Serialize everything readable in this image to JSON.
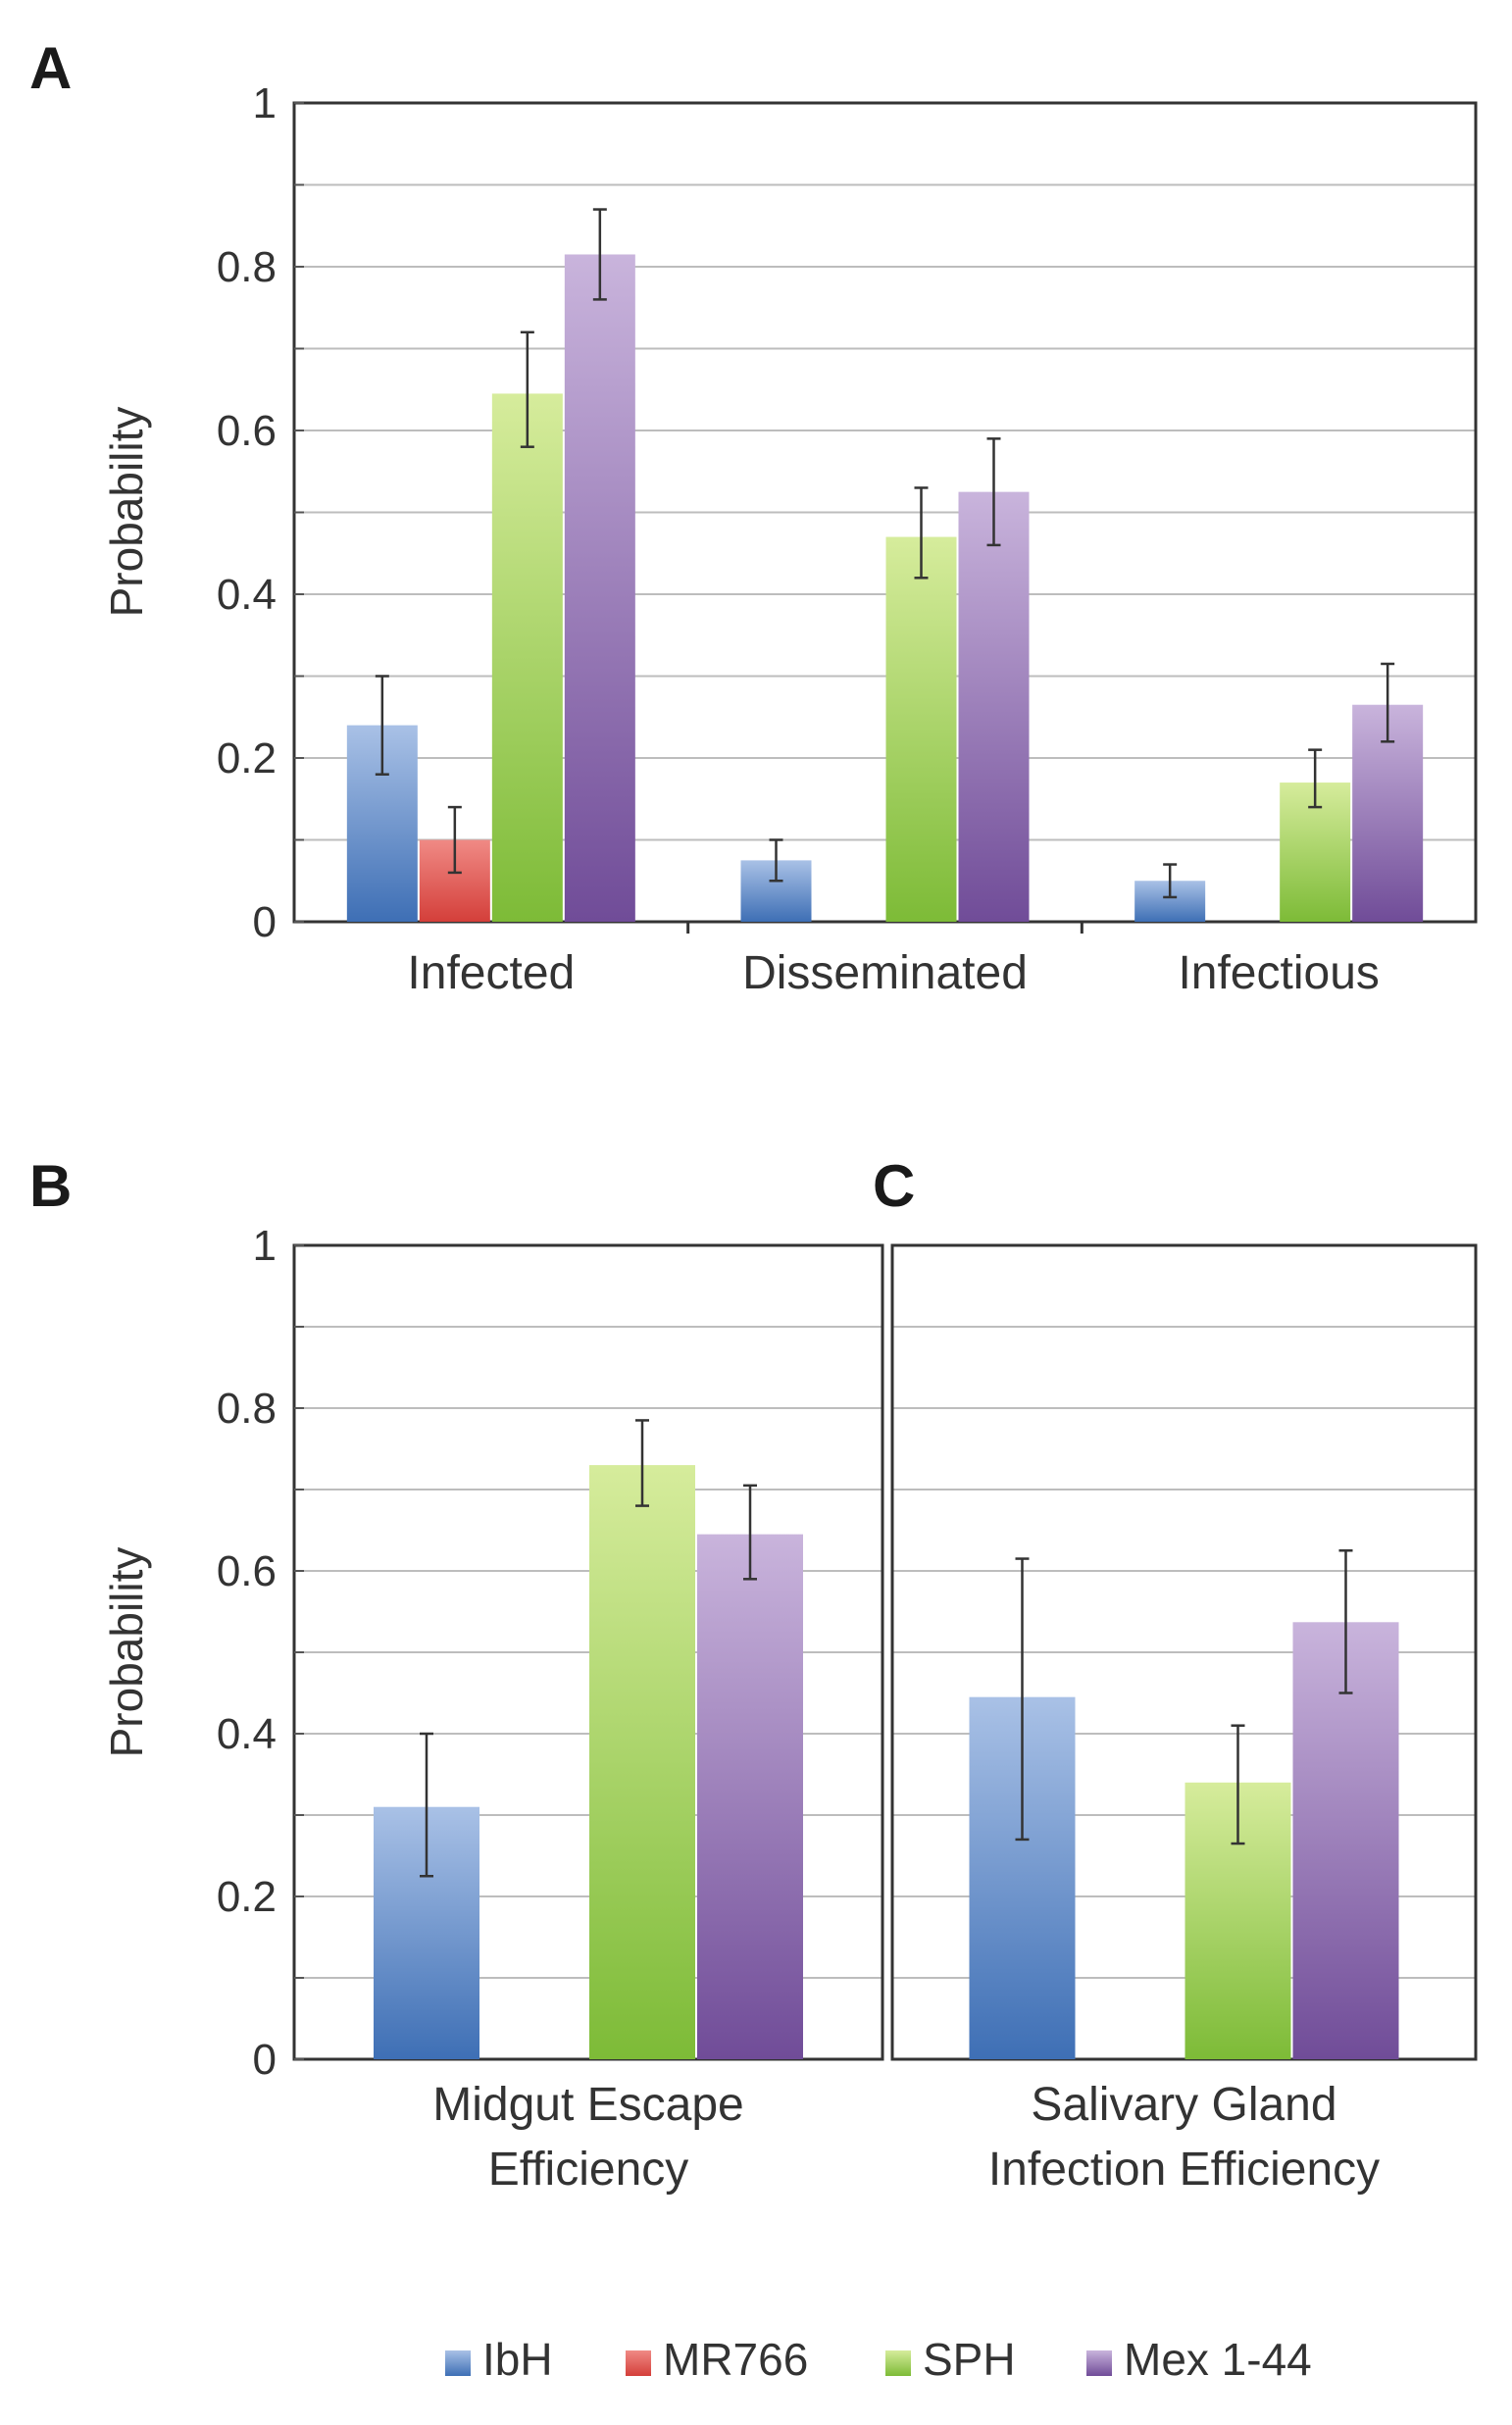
{
  "colors": {
    "IbH": "#4f7ec0",
    "MR766": "#d9534f",
    "SPH": "#8cc540",
    "Mex 1-44": "#7e5aa3"
  },
  "legend": [
    "IbH",
    "MR766",
    "SPH",
    "Mex 1-44"
  ],
  "chart_data": [
    {
      "panel": "A",
      "type": "bar",
      "ylabel": "Probability",
      "ylim": [
        0,
        1
      ],
      "yticks": [
        "0",
        "0.2",
        "0.4",
        "0.6",
        "0.8",
        "1"
      ],
      "categories": [
        "Infected",
        "Disseminated",
        "Infectious"
      ],
      "series": [
        {
          "name": "IbH",
          "values": [
            0.24,
            0.075,
            0.05
          ],
          "err_low": [
            0.18,
            0.05,
            0.03
          ],
          "err_high": [
            0.3,
            0.1,
            0.07
          ]
        },
        {
          "name": "MR766",
          "values": [
            0.1,
            0,
            0
          ],
          "err_low": [
            0.06,
            null,
            null
          ],
          "err_high": [
            0.14,
            null,
            null
          ]
        },
        {
          "name": "SPH",
          "values": [
            0.645,
            0.47,
            0.17
          ],
          "err_low": [
            0.58,
            0.42,
            0.14
          ],
          "err_high": [
            0.72,
            0.53,
            0.21
          ]
        },
        {
          "name": "Mex 1-44",
          "values": [
            0.815,
            0.525,
            0.265
          ],
          "err_low": [
            0.76,
            0.46,
            0.22
          ],
          "err_high": [
            0.87,
            0.59,
            0.315
          ]
        }
      ]
    },
    {
      "panel": "B",
      "type": "bar",
      "ylabel": "Probability",
      "ylim": [
        0,
        1
      ],
      "yticks": [
        "0",
        "0.2",
        "0.4",
        "0.6",
        "0.8",
        "1"
      ],
      "categories": [
        "Midgut Escape Efficiency"
      ],
      "category_lines": [
        [
          "Midgut Escape",
          "Efficiency"
        ]
      ],
      "series": [
        {
          "name": "IbH",
          "values": [
            0.31
          ],
          "err_low": [
            0.225
          ],
          "err_high": [
            0.4
          ]
        },
        {
          "name": "MR766",
          "values": [
            0
          ],
          "err_low": [
            null
          ],
          "err_high": [
            null
          ]
        },
        {
          "name": "SPH",
          "values": [
            0.73
          ],
          "err_low": [
            0.68
          ],
          "err_high": [
            0.785
          ]
        },
        {
          "name": "Mex 1-44",
          "values": [
            0.645
          ],
          "err_low": [
            0.59
          ],
          "err_high": [
            0.705
          ]
        }
      ]
    },
    {
      "panel": "C",
      "type": "bar",
      "ylabel": "",
      "ylim": [
        0,
        1
      ],
      "yticks": [],
      "categories": [
        "Salivary Gland Infection Efficiency"
      ],
      "category_lines": [
        [
          "Salivary Gland",
          "Infection Efficiency"
        ]
      ],
      "series": [
        {
          "name": "IbH",
          "values": [
            0.445
          ],
          "err_low": [
            0.27
          ],
          "err_high": [
            0.615
          ]
        },
        {
          "name": "MR766",
          "values": [
            0
          ],
          "err_low": [
            null
          ],
          "err_high": [
            null
          ]
        },
        {
          "name": "SPH",
          "values": [
            0.34
          ],
          "err_low": [
            0.265
          ],
          "err_high": [
            0.41
          ]
        },
        {
          "name": "Mex 1-44",
          "values": [
            0.537
          ],
          "err_low": [
            0.45
          ],
          "err_high": [
            0.625
          ]
        }
      ]
    }
  ]
}
